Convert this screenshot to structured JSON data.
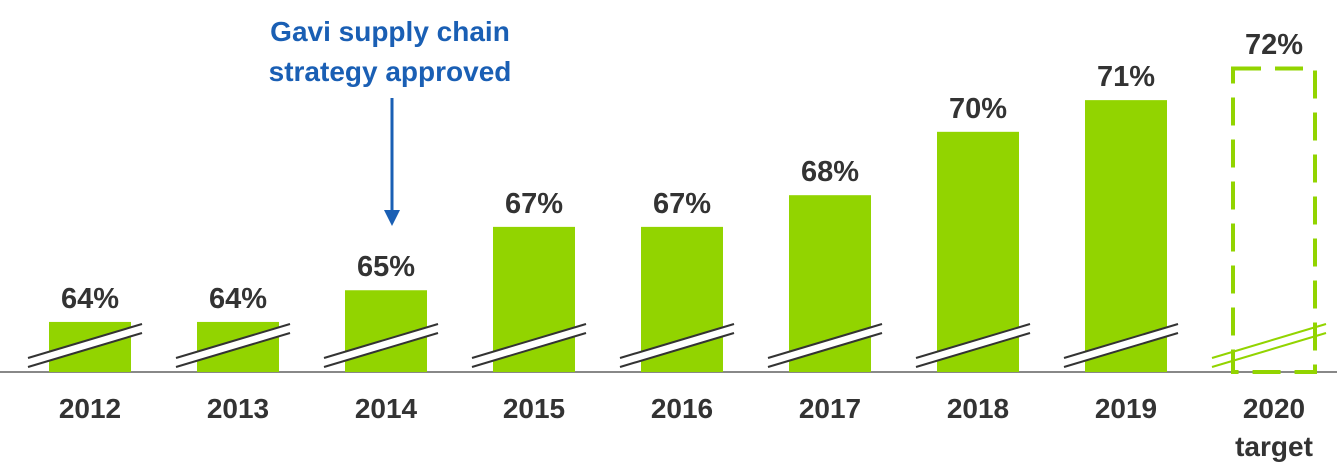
{
  "chart_data": {
    "type": "bar",
    "categories": [
      "2012",
      "2013",
      "2014",
      "2015",
      "2016",
      "2017",
      "2018",
      "2019",
      "2020 target"
    ],
    "values": [
      64,
      64,
      65,
      67,
      67,
      68,
      70,
      71,
      72
    ],
    "value_labels": [
      "64%",
      "64%",
      "65%",
      "67%",
      "67%",
      "68%",
      "70%",
      "71%",
      "72%"
    ],
    "styles": [
      "solid",
      "solid",
      "solid",
      "solid",
      "solid",
      "solid",
      "solid",
      "solid",
      "dashed"
    ],
    "color": "#92d400",
    "ylim": [
      62.42,
      74.16
    ],
    "annotation": "Gavi supply chain strategy approved"
  }
}
